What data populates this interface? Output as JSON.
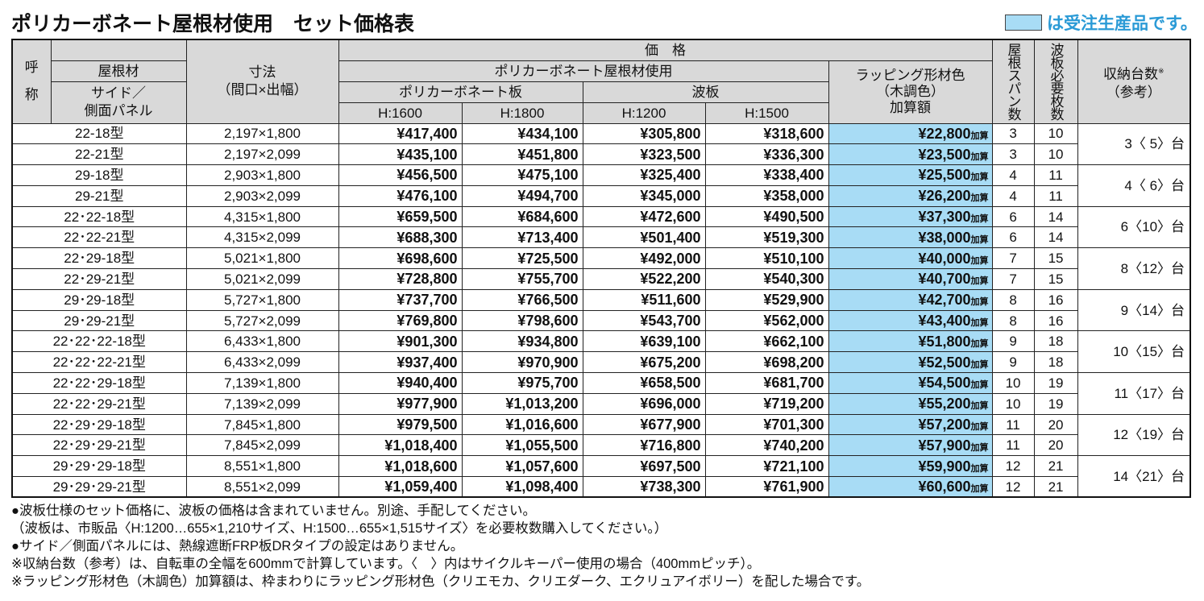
{
  "title": "ポリカーボネート屋根材使用　セット価格表",
  "legend": {
    "text": "は受注生産品です。",
    "color": "#a8dcf5"
  },
  "header": {
    "yobi": "呼",
    "sho": "称",
    "roof": "屋根材",
    "side": "サイド／",
    "side2": "側面パネル",
    "size": "寸法",
    "size2": "（間口×出幅）",
    "price": "価　格",
    "poly_use": "ポリカーボネート屋根材使用",
    "poly_board": "ポリカーボネート板",
    "nami": "波板",
    "h1600": "H:1600",
    "h1800": "H:1800",
    "h1200": "H:1200",
    "h1500": "H:1500",
    "wrap1": "ラッピング形材色",
    "wrap2": "（木調色）",
    "wrap3": "加算額",
    "span": "屋根スパン数",
    "sheets": "波板必要枚数",
    "storage": "収納台数",
    "storage_mark": "※",
    "storage2": "（参考）"
  },
  "add_suffix": "加算",
  "rows": [
    {
      "name": "22-18型",
      "size": "2,197×1,800",
      "p1600": "¥417,400",
      "p1800": "¥434,100",
      "n1200": "¥305,800",
      "n1500": "¥318,600",
      "wrap": "¥22,800",
      "span": "3",
      "sheets": "10",
      "storage": "3〈 5〉台"
    },
    {
      "name": "22-21型",
      "size": "2,197×2,099",
      "p1600": "¥435,100",
      "p1800": "¥451,800",
      "n1200": "¥323,500",
      "n1500": "¥336,300",
      "wrap": "¥23,500",
      "span": "3",
      "sheets": "10"
    },
    {
      "name": "29-18型",
      "size": "2,903×1,800",
      "p1600": "¥456,500",
      "p1800": "¥475,100",
      "n1200": "¥325,400",
      "n1500": "¥338,400",
      "wrap": "¥25,500",
      "span": "4",
      "sheets": "11",
      "storage": "4〈 6〉台"
    },
    {
      "name": "29-21型",
      "size": "2,903×2,099",
      "p1600": "¥476,100",
      "p1800": "¥494,700",
      "n1200": "¥345,000",
      "n1500": "¥358,000",
      "wrap": "¥26,200",
      "span": "4",
      "sheets": "11"
    },
    {
      "name": "22･22-18型",
      "size": "4,315×1,800",
      "p1600": "¥659,500",
      "p1800": "¥684,600",
      "n1200": "¥472,600",
      "n1500": "¥490,500",
      "wrap": "¥37,300",
      "span": "6",
      "sheets": "14",
      "storage": "6〈10〉台"
    },
    {
      "name": "22･22-21型",
      "size": "4,315×2,099",
      "p1600": "¥688,300",
      "p1800": "¥713,400",
      "n1200": "¥501,400",
      "n1500": "¥519,300",
      "wrap": "¥38,000",
      "span": "6",
      "sheets": "14"
    },
    {
      "name": "22･29-18型",
      "size": "5,021×1,800",
      "p1600": "¥698,600",
      "p1800": "¥725,500",
      "n1200": "¥492,000",
      "n1500": "¥510,100",
      "wrap": "¥40,000",
      "span": "7",
      "sheets": "15",
      "storage": "8〈12〉台"
    },
    {
      "name": "22･29-21型",
      "size": "5,021×2,099",
      "p1600": "¥728,800",
      "p1800": "¥755,700",
      "n1200": "¥522,200",
      "n1500": "¥540,300",
      "wrap": "¥40,700",
      "span": "7",
      "sheets": "15"
    },
    {
      "name": "29･29-18型",
      "size": "5,727×1,800",
      "p1600": "¥737,700",
      "p1800": "¥766,500",
      "n1200": "¥511,600",
      "n1500": "¥529,900",
      "wrap": "¥42,700",
      "span": "8",
      "sheets": "16",
      "storage": "9〈14〉台"
    },
    {
      "name": "29･29-21型",
      "size": "5,727×2,099",
      "p1600": "¥769,800",
      "p1800": "¥798,600",
      "n1200": "¥543,700",
      "n1500": "¥562,000",
      "wrap": "¥43,400",
      "span": "8",
      "sheets": "16"
    },
    {
      "name": "22･22･22-18型",
      "size": "6,433×1,800",
      "p1600": "¥901,300",
      "p1800": "¥934,800",
      "n1200": "¥639,100",
      "n1500": "¥662,100",
      "wrap": "¥51,800",
      "span": "9",
      "sheets": "18",
      "storage": "10〈15〉台"
    },
    {
      "name": "22･22･22-21型",
      "size": "6,433×2,099",
      "p1600": "¥937,400",
      "p1800": "¥970,900",
      "n1200": "¥675,200",
      "n1500": "¥698,200",
      "wrap": "¥52,500",
      "span": "9",
      "sheets": "18"
    },
    {
      "name": "22･22･29-18型",
      "size": "7,139×1,800",
      "p1600": "¥940,400",
      "p1800": "¥975,700",
      "n1200": "¥658,500",
      "n1500": "¥681,700",
      "wrap": "¥54,500",
      "span": "10",
      "sheets": "19",
      "storage": "11〈17〉台"
    },
    {
      "name": "22･22･29-21型",
      "size": "7,139×2,099",
      "p1600": "¥977,900",
      "p1800": "¥1,013,200",
      "n1200": "¥696,000",
      "n1500": "¥719,200",
      "wrap": "¥55,200",
      "span": "10",
      "sheets": "19"
    },
    {
      "name": "22･29･29-18型",
      "size": "7,845×1,800",
      "p1600": "¥979,500",
      "p1800": "¥1,016,600",
      "n1200": "¥677,900",
      "n1500": "¥701,300",
      "wrap": "¥57,200",
      "span": "11",
      "sheets": "20",
      "storage": "12〈19〉台"
    },
    {
      "name": "22･29･29-21型",
      "size": "7,845×2,099",
      "p1600": "¥1,018,400",
      "p1800": "¥1,055,500",
      "n1200": "¥716,800",
      "n1500": "¥740,200",
      "wrap": "¥57,900",
      "span": "11",
      "sheets": "20"
    },
    {
      "name": "29･29･29-18型",
      "size": "8,551×1,800",
      "p1600": "¥1,018,600",
      "p1800": "¥1,057,600",
      "n1200": "¥697,500",
      "n1500": "¥721,100",
      "wrap": "¥59,900",
      "span": "12",
      "sheets": "21",
      "storage": "14〈21〉台"
    },
    {
      "name": "29･29･29-21型",
      "size": "8,551×2,099",
      "p1600": "¥1,059,400",
      "p1800": "¥1,098,400",
      "n1200": "¥738,300",
      "n1500": "¥761,900",
      "wrap": "¥60,600",
      "span": "12",
      "sheets": "21"
    }
  ],
  "notes": [
    "●波板仕様のセット価格に、波板の価格は含まれていません。別途、手配してください。",
    "（波板は、市販品〈H:1200…655×1,210サイズ、H:1500…655×1,515サイズ〉を必要枚数購入してください。）",
    "●サイド／側面パネルには、熱線遮断FRP板DRタイプの設定はありません。",
    "※収納台数（参考）は、自転車の全幅を600mmで計算しています。〈　〉内はサイクルキーパー使用の場合（400mmピッチ）。",
    "※ラッピング形材色（木調色）加算額は、枠まわりにラッピング形材色（クリエモカ、クリエダーク、エクリュアイボリー）を配した場合です。"
  ]
}
